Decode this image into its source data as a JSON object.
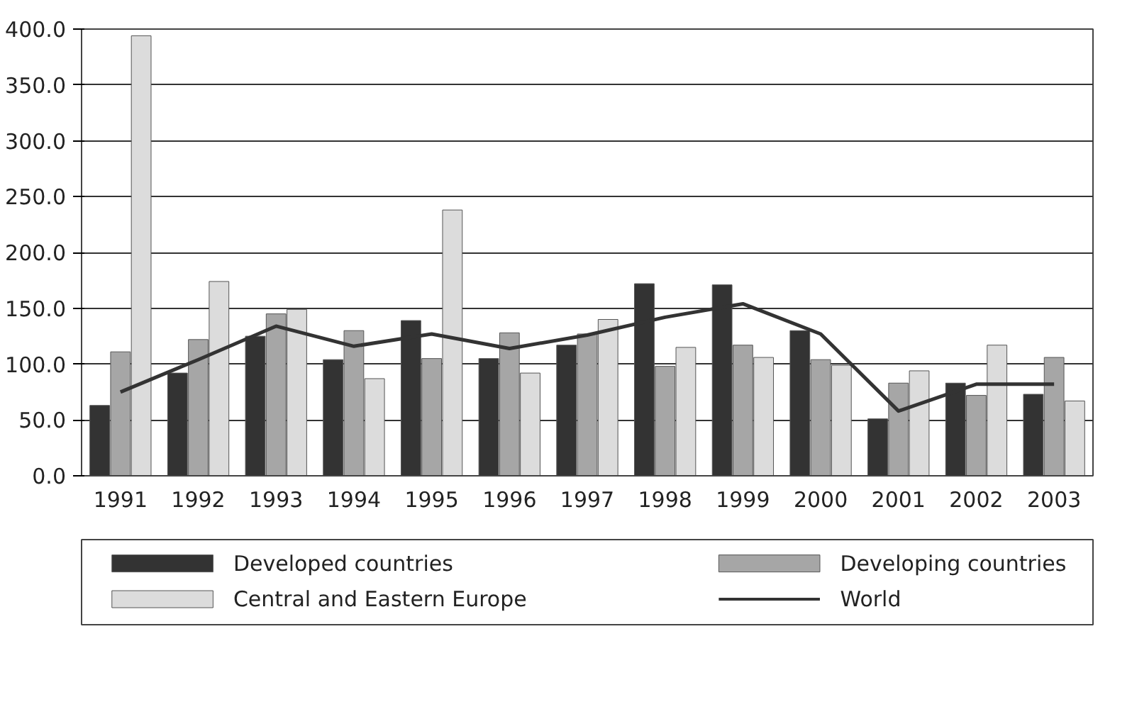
{
  "chart_data": {
    "type": "bar",
    "categories": [
      "1991",
      "1992",
      "1993",
      "1994",
      "1995",
      "1996",
      "1997",
      "1998",
      "1999",
      "2000",
      "2001",
      "2002",
      "2003"
    ],
    "series": [
      {
        "name": "Developed countries",
        "color": "#333333",
        "values": [
          63,
          92,
          125,
          104,
          139,
          105,
          117,
          172,
          171,
          130,
          51,
          83,
          73
        ]
      },
      {
        "name": "Developing countries",
        "color": "#a6a6a6",
        "values": [
          111,
          122,
          145,
          130,
          105,
          128,
          127,
          98,
          117,
          104,
          83,
          72,
          106
        ]
      },
      {
        "name": "Central and Eastern Europe",
        "color": "#dcdcdc",
        "values": [
          394,
          174,
          149,
          87,
          238,
          92,
          140,
          115,
          106,
          99,
          94,
          117,
          67
        ]
      },
      {
        "name": "World",
        "type": "line",
        "color": "#333333",
        "values": [
          75,
          104,
          134,
          116,
          127,
          114,
          126,
          142,
          154,
          127,
          58,
          82,
          82
        ]
      }
    ],
    "ylim": [
      0,
      400
    ],
    "yticks": [
      {
        "value": 0,
        "label": "0.0"
      },
      {
        "value": 50,
        "label": "50.0"
      },
      {
        "value": 100,
        "label": "100.0"
      },
      {
        "value": 150,
        "label": "150.0"
      },
      {
        "value": 200,
        "label": "200.0"
      },
      {
        "value": 250,
        "label": "250.0"
      },
      {
        "value": 300,
        "label": "300.0"
      },
      {
        "value": 350,
        "label": "350.0"
      },
      {
        "value": 400,
        "label": "400.0"
      }
    ],
    "grid": "y",
    "legend": "bottom"
  }
}
